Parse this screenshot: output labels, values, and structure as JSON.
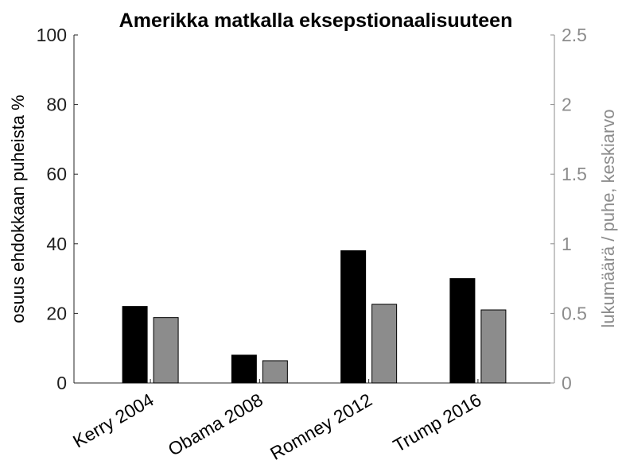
{
  "chart_data": {
    "type": "bar",
    "title": "Amerikka matkalla eksepstionaalisuuteen",
    "categories": [
      "Kerry 2004",
      "Obama 2008",
      "Romney 2012",
      "Trump 2016"
    ],
    "series": [
      {
        "axis": "left",
        "color": "#000000",
        "values": [
          22,
          8,
          38,
          30
        ]
      },
      {
        "axis": "right",
        "color": "#8c8c8c",
        "values": [
          0.47,
          0.16,
          0.565,
          0.525
        ]
      }
    ],
    "ylabel": "osuus ehdokkaan puheista %",
    "ylabel_right": "lukumäärä / puhe, keskiarvo",
    "ylim": [
      0,
      100
    ],
    "ylim_right": [
      0,
      2.5
    ],
    "yticks": [
      "0",
      "20",
      "40",
      "60",
      "80",
      "100"
    ],
    "yticks_right": [
      "0",
      "0.5",
      "1",
      "1.5",
      "2",
      "2.5"
    ],
    "grid": false,
    "legend": "none"
  }
}
